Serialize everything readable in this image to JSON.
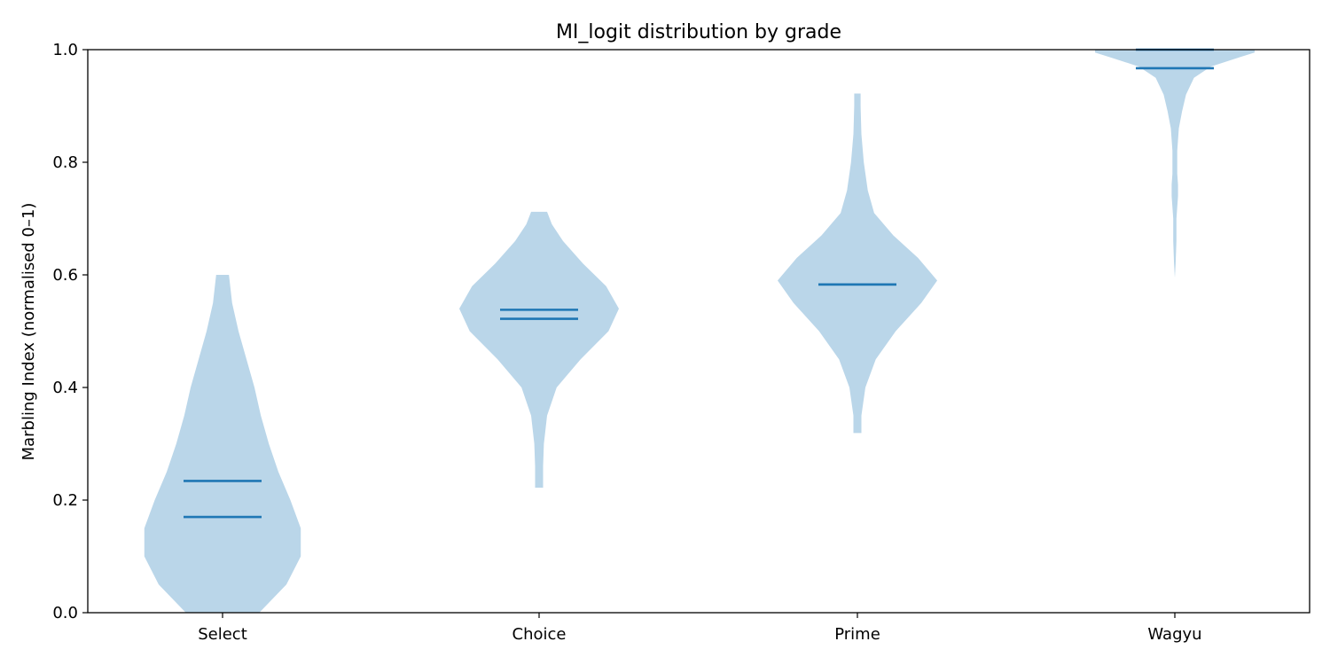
{
  "chart_data": {
    "type": "violin",
    "title": "MI_logit distribution by grade",
    "xlabel": "",
    "ylabel": "Marbling Index (normalised 0–1)",
    "categories": [
      "Select",
      "Choice",
      "Prime",
      "Wagyu"
    ],
    "ylim": [
      0.0,
      1.0
    ],
    "yticks": [
      0.0,
      0.2,
      0.4,
      0.6,
      0.8,
      1.0
    ],
    "ytick_labels": [
      "0.0",
      "0.2",
      "0.4",
      "0.6",
      "0.8",
      "1.0"
    ],
    "grid": false,
    "colors": {
      "body": "#bad6e9",
      "line": "#1f77b4",
      "axis": "#000000"
    },
    "series": [
      {
        "category": "Select",
        "mean": 0.234,
        "median": 0.17,
        "range": [
          0.0,
          0.6
        ],
        "density_profile": [
          [
            0.0,
            0.46
          ],
          [
            0.05,
            0.8
          ],
          [
            0.1,
            0.98
          ],
          [
            0.15,
            0.98
          ],
          [
            0.2,
            0.85
          ],
          [
            0.25,
            0.7
          ],
          [
            0.3,
            0.58
          ],
          [
            0.35,
            0.48
          ],
          [
            0.4,
            0.4
          ],
          [
            0.45,
            0.3
          ],
          [
            0.5,
            0.2
          ],
          [
            0.55,
            0.12
          ],
          [
            0.6,
            0.08
          ]
        ]
      },
      {
        "category": "Choice",
        "mean": 0.538,
        "median": 0.522,
        "range": [
          0.222,
          0.712
        ],
        "density_profile": [
          [
            0.222,
            0.05
          ],
          [
            0.26,
            0.05
          ],
          [
            0.3,
            0.06
          ],
          [
            0.35,
            0.1
          ],
          [
            0.4,
            0.22
          ],
          [
            0.45,
            0.52
          ],
          [
            0.5,
            0.87
          ],
          [
            0.54,
            1.0
          ],
          [
            0.58,
            0.84
          ],
          [
            0.62,
            0.55
          ],
          [
            0.66,
            0.3
          ],
          [
            0.69,
            0.16
          ],
          [
            0.712,
            0.1
          ]
        ]
      },
      {
        "category": "Prime",
        "mean": 0.583,
        "median": 0.583,
        "range": [
          0.319,
          0.922
        ],
        "density_profile": [
          [
            0.319,
            0.05
          ],
          [
            0.35,
            0.05
          ],
          [
            0.4,
            0.1
          ],
          [
            0.45,
            0.23
          ],
          [
            0.5,
            0.48
          ],
          [
            0.55,
            0.8
          ],
          [
            0.59,
            1.0
          ],
          [
            0.63,
            0.76
          ],
          [
            0.67,
            0.45
          ],
          [
            0.71,
            0.21
          ],
          [
            0.75,
            0.13
          ],
          [
            0.8,
            0.08
          ],
          [
            0.85,
            0.05
          ],
          [
            0.9,
            0.04
          ],
          [
            0.922,
            0.04
          ]
        ]
      },
      {
        "category": "Wagyu",
        "mean": 0.967,
        "median": 1.0,
        "range": [
          0.595,
          1.0
        ],
        "density_profile": [
          [
            0.595,
            0.0
          ],
          [
            0.62,
            0.01
          ],
          [
            0.66,
            0.02
          ],
          [
            0.7,
            0.02
          ],
          [
            0.72,
            0.03
          ],
          [
            0.74,
            0.04
          ],
          [
            0.76,
            0.04
          ],
          [
            0.78,
            0.03
          ],
          [
            0.82,
            0.03
          ],
          [
            0.86,
            0.05
          ],
          [
            0.89,
            0.09
          ],
          [
            0.92,
            0.14
          ],
          [
            0.95,
            0.24
          ],
          [
            0.97,
            0.45
          ],
          [
            0.985,
            0.78
          ],
          [
            0.995,
            1.0
          ],
          [
            1.0,
            1.0
          ]
        ]
      }
    ]
  }
}
